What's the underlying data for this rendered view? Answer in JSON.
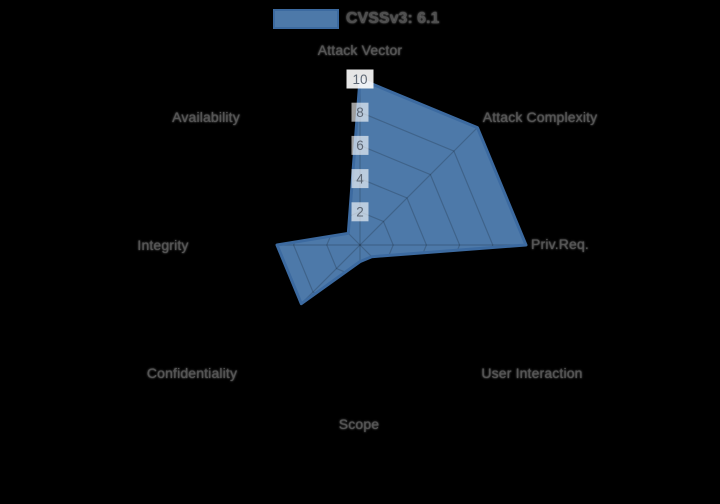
{
  "legend": {
    "label": "CVSSv3: 6.1"
  },
  "chart_data": {
    "type": "radar",
    "title": "CVSSv3: 6.1",
    "categories": [
      "Attack Vector",
      "Attack Complexity",
      "Priv.Req.",
      "User Interaction",
      "Scope",
      "Confidentiality",
      "Integrity",
      "Availability"
    ],
    "series": [
      {
        "name": "CVSSv3: 6.1",
        "values": [
          10,
          10,
          10,
          1,
          1,
          5,
          5,
          1
        ]
      }
    ],
    "rlim": [
      0,
      10
    ],
    "ticks": [
      "10",
      "8",
      "6",
      "4",
      "2"
    ],
    "tick_values": [
      10,
      8,
      6,
      4,
      2
    ],
    "legend_position": "top",
    "grid": "octagonal web with radial spokes, visible only beneath the filled polygon",
    "colors": {
      "fill": "#4d79a9",
      "border": "#3c6aa0",
      "grid_line": "rgba(0,0,0,0.18)",
      "tick_text": "#5d6774",
      "tick_backdrop": "rgba(255,255,255,0.62)",
      "tick_backdrop_outer": "rgba(255,255,255,0.9)",
      "label_text": "#555555"
    }
  }
}
